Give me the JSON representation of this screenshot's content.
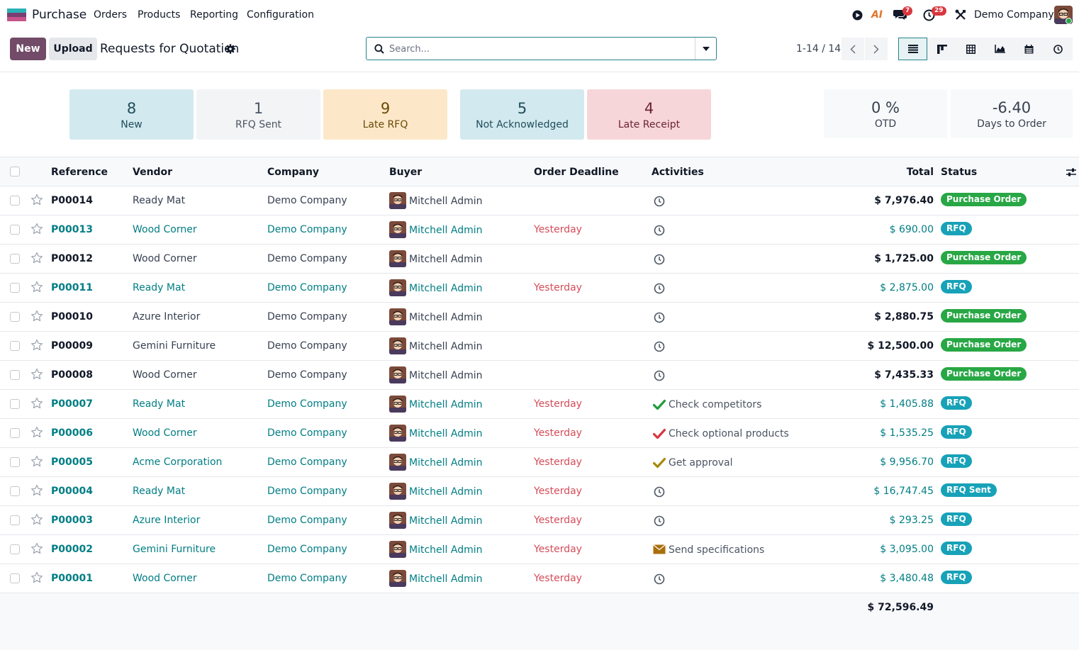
{
  "navbar": {
    "app_name": "Purchase",
    "menus": [
      "Orders",
      "Products",
      "Reporting",
      "Configuration"
    ],
    "chat_badge": "7",
    "activity_badge": "29",
    "ai_label": "AI",
    "company": "Demo Company"
  },
  "control_panel": {
    "new_label": "New",
    "upload_label": "Upload",
    "title": "Requests for Quotation",
    "search_placeholder": "Search...",
    "pager": "1-14 / 14"
  },
  "cards": [
    {
      "value": "8",
      "label": "New",
      "bg": "#d2e9ef",
      "fg": "#1f4e5a"
    },
    {
      "value": "1",
      "label": "RFQ Sent",
      "bg": "#f3f4f6",
      "fg": "#4b5563"
    },
    {
      "value": "9",
      "label": "Late RFQ",
      "bg": "#fce8c8",
      "fg": "#6b4a08"
    },
    {
      "value": "5",
      "label": "Not Acknowledged",
      "bg": "#d2e9ef",
      "fg": "#1f4e5a"
    },
    {
      "value": "4",
      "label": "Late Receipt",
      "bg": "#f7d6da",
      "fg": "#6b2430"
    }
  ],
  "kpis": [
    {
      "value": "0 %",
      "label": "OTD"
    },
    {
      "value": "-6.40",
      "label": "Days to Order"
    }
  ],
  "table": {
    "columns": {
      "reference": "Reference",
      "vendor": "Vendor",
      "company": "Company",
      "buyer": "Buyer",
      "deadline": "Order Deadline",
      "activities": "Activities",
      "total": "Total",
      "status": "Status"
    },
    "rows": [
      {
        "ref": "P00014",
        "vendor": "Ready Mat",
        "company": "Demo Company",
        "buyer": "Mitchell Admin",
        "deadline": "",
        "activity": "",
        "activity_icon": "clock-icon",
        "total": "$ 7,976.40",
        "status": "Purchase Order",
        "rfq": false
      },
      {
        "ref": "P00013",
        "vendor": "Wood Corner",
        "company": "Demo Company",
        "buyer": "Mitchell Admin",
        "deadline": "Yesterday",
        "activity": "",
        "activity_icon": "clock-icon",
        "total": "$ 690.00",
        "status": "RFQ",
        "rfq": true
      },
      {
        "ref": "P00012",
        "vendor": "Wood Corner",
        "company": "Demo Company",
        "buyer": "Mitchell Admin",
        "deadline": "",
        "activity": "",
        "activity_icon": "clock-icon",
        "total": "$ 1,725.00",
        "status": "Purchase Order",
        "rfq": false
      },
      {
        "ref": "P00011",
        "vendor": "Ready Mat",
        "company": "Demo Company",
        "buyer": "Mitchell Admin",
        "deadline": "Yesterday",
        "activity": "",
        "activity_icon": "clock-icon",
        "total": "$ 2,875.00",
        "status": "RFQ",
        "rfq": true
      },
      {
        "ref": "P00010",
        "vendor": "Azure Interior",
        "company": "Demo Company",
        "buyer": "Mitchell Admin",
        "deadline": "",
        "activity": "",
        "activity_icon": "clock-icon",
        "total": "$ 2,880.75",
        "status": "Purchase Order",
        "rfq": false
      },
      {
        "ref": "P00009",
        "vendor": "Gemini Furniture",
        "company": "Demo Company",
        "buyer": "Mitchell Admin",
        "deadline": "",
        "activity": "",
        "activity_icon": "clock-icon",
        "total": "$ 12,500.00",
        "status": "Purchase Order",
        "rfq": false
      },
      {
        "ref": "P00008",
        "vendor": "Wood Corner",
        "company": "Demo Company",
        "buyer": "Mitchell Admin",
        "deadline": "",
        "activity": "",
        "activity_icon": "clock-icon",
        "total": "$ 7,435.33",
        "status": "Purchase Order",
        "rfq": false
      },
      {
        "ref": "P00007",
        "vendor": "Ready Mat",
        "company": "Demo Company",
        "buyer": "Mitchell Admin",
        "deadline": "Yesterday",
        "activity": "Check competitors",
        "activity_icon": "check-green-icon",
        "total": "$ 1,405.88",
        "status": "RFQ",
        "rfq": true
      },
      {
        "ref": "P00006",
        "vendor": "Wood Corner",
        "company": "Demo Company",
        "buyer": "Mitchell Admin",
        "deadline": "Yesterday",
        "activity": "Check optional products",
        "activity_icon": "check-red-icon",
        "total": "$ 1,535.25",
        "status": "RFQ",
        "rfq": true
      },
      {
        "ref": "P00005",
        "vendor": "Acme Corporation",
        "company": "Demo Company",
        "buyer": "Mitchell Admin",
        "deadline": "Yesterday",
        "activity": "Get approval",
        "activity_icon": "check-olive-icon",
        "total": "$ 9,956.70",
        "status": "RFQ",
        "rfq": true
      },
      {
        "ref": "P00004",
        "vendor": "Ready Mat",
        "company": "Demo Company",
        "buyer": "Mitchell Admin",
        "deadline": "Yesterday",
        "activity": "",
        "activity_icon": "clock-icon",
        "total": "$ 16,747.45",
        "status": "RFQ Sent",
        "rfq": true
      },
      {
        "ref": "P00003",
        "vendor": "Azure Interior",
        "company": "Demo Company",
        "buyer": "Mitchell Admin",
        "deadline": "Yesterday",
        "activity": "",
        "activity_icon": "clock-icon",
        "total": "$ 293.25",
        "status": "RFQ",
        "rfq": true
      },
      {
        "ref": "P00002",
        "vendor": "Gemini Furniture",
        "company": "Demo Company",
        "buyer": "Mitchell Admin",
        "deadline": "Yesterday",
        "activity": "Send specifications",
        "activity_icon": "envelope-icon",
        "total": "$ 3,095.00",
        "status": "RFQ",
        "rfq": true
      },
      {
        "ref": "P00001",
        "vendor": "Wood Corner",
        "company": "Demo Company",
        "buyer": "Mitchell Admin",
        "deadline": "Yesterday",
        "activity": "",
        "activity_icon": "clock-icon",
        "total": "$ 3,480.48",
        "status": "RFQ",
        "rfq": true
      }
    ],
    "grand_total": "$ 72,596.49"
  },
  "colors": {
    "brand": "#714b67",
    "link": "#017e84",
    "deadline": "#d44c59",
    "purchase_order": "#28a745",
    "rfq": "#17a2b8"
  }
}
